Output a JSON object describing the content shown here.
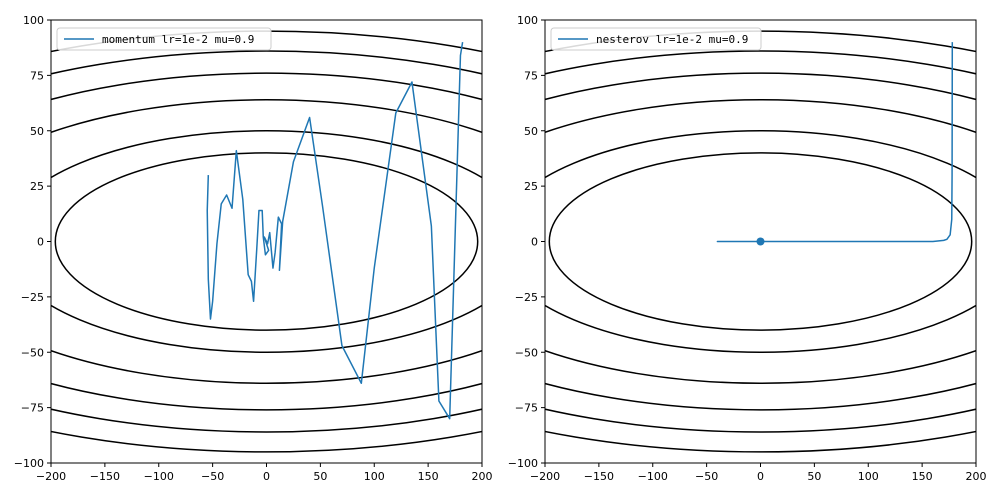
{
  "chart_data": [
    {
      "type": "line",
      "title": "",
      "xlabel": "",
      "ylabel": "",
      "xlim": [
        -200,
        200
      ],
      "ylim": [
        -100,
        100
      ],
      "xticks": [
        -200,
        -150,
        -100,
        -50,
        0,
        50,
        100,
        150,
        200
      ],
      "yticks": [
        -100,
        -75,
        -50,
        -25,
        0,
        25,
        50,
        75,
        100
      ],
      "legend_position": "top-left",
      "contour_levels": [
        40,
        50,
        64,
        76,
        86,
        95
      ],
      "contour_ratio_x": 4.9,
      "series": [
        {
          "name": "momentum lr=1e-2 mu=0.9",
          "color": "#1f77b4",
          "x": [
            182,
            180,
            170,
            160,
            153,
            135,
            120,
            100,
            88,
            70,
            52,
            40,
            25,
            15,
            12,
            14,
            11,
            8,
            6,
            3,
            1,
            -2,
            2,
            -1,
            -3,
            -4,
            -7,
            -9,
            -12,
            -14,
            -17,
            -22,
            -28,
            -32,
            -37,
            -42,
            -46,
            -50,
            -52,
            -54,
            -55,
            -54
          ],
          "y": [
            90,
            84,
            -80,
            -72,
            7,
            72,
            58,
            -12,
            -64,
            -47,
            16,
            56,
            36,
            9,
            -13,
            8,
            11,
            -5,
            -12,
            4,
            -1,
            2,
            -4,
            -6,
            2,
            14,
            14,
            -3,
            -27,
            -18,
            -15,
            19,
            41,
            15,
            21,
            17,
            -1,
            -27,
            -35,
            -17,
            14,
            30
          ]
        },
        {
          "name": "nesterov lr=1e-2 mu=0.9",
          "color": "#1f77b4",
          "x": [
            178,
            177.9,
            177.8,
            177.5,
            176,
            173,
            170,
            160,
            100,
            40,
            0,
            -20,
            -32,
            -38,
            -40,
            -40,
            -39,
            -35,
            -25,
            -10,
            0,
            5,
            8,
            9,
            8,
            6,
            3,
            1,
            0
          ],
          "y": [
            90,
            60,
            30,
            10,
            3,
            1,
            0.5,
            0,
            0,
            0,
            0,
            0,
            0,
            0,
            0,
            0,
            0,
            0,
            0,
            0,
            0,
            0,
            0,
            0,
            0,
            0,
            0,
            0,
            0
          ],
          "end_marker": [
            0,
            0
          ]
        }
      ]
    }
  ],
  "panels": [
    {
      "legend_label": "momentum lr=1e-2 mu=0.9"
    },
    {
      "legend_label": "nesterov lr=1e-2 mu=0.9"
    }
  ]
}
